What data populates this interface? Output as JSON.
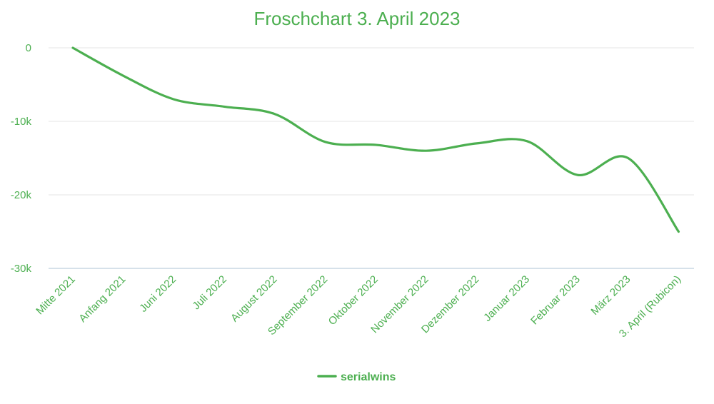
{
  "chart_data": {
    "type": "line",
    "title": "Froschchart 3. April 2023",
    "xlabel": "",
    "ylabel": "",
    "categories": [
      "Mitte 2021",
      "Anfang 2021",
      "Juni 2022",
      "Juli 2022",
      "August 2022",
      "September 2022",
      "Oktober 2022",
      "November 2022",
      "Dezember 2022",
      "Januar 2023",
      "Februar 2023",
      "März 2023",
      "3. April (Rubicon)"
    ],
    "series": [
      {
        "name": "serialwins",
        "color": "#4caf50",
        "values": [
          0,
          -3800,
          -7000,
          -8000,
          -9000,
          -12800,
          -13200,
          -14000,
          -13000,
          -12700,
          -17300,
          -15000,
          -25000
        ]
      }
    ],
    "ylim": [
      -30000,
      0
    ],
    "yticks": [
      0,
      -10000,
      -20000,
      -30000
    ],
    "ytick_labels": [
      "0",
      "-10k",
      "-20k",
      "-30k"
    ],
    "grid": true,
    "legend": "bottom"
  },
  "colors": {
    "accent": "#4caf50",
    "grid": "#e6e6e6",
    "axis": "#c9d7e3"
  }
}
